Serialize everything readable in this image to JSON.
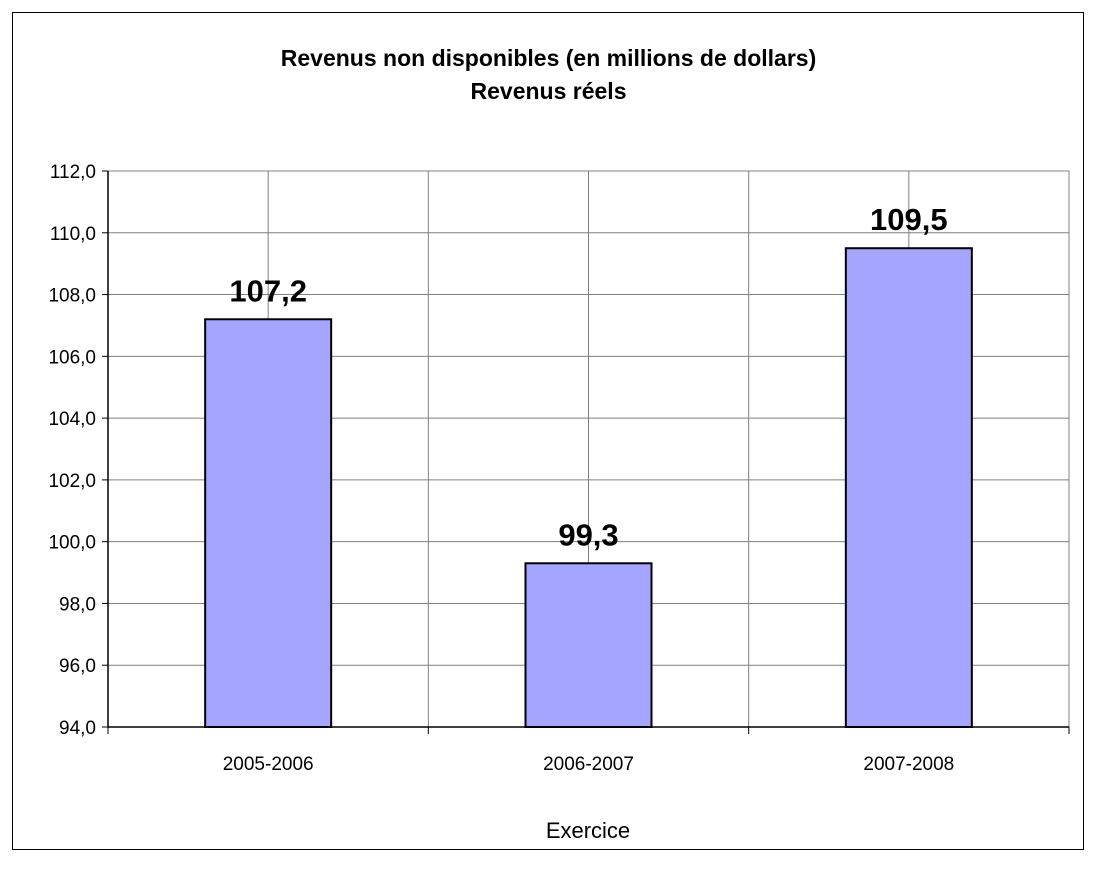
{
  "chart_data": {
    "type": "bar",
    "title": "Revenus non disponibles (en millions de dollars)",
    "subtitle": "Revenus réels",
    "xlabel": "Exercice",
    "ylabel": "",
    "categories": [
      "2005-2006",
      "2006-2007",
      "2007-2008"
    ],
    "values": [
      107.2,
      99.3,
      109.5
    ],
    "data_labels": [
      "107,2",
      "99,3",
      "109,5"
    ],
    "ylim": [
      94,
      112
    ],
    "y_ticks": [
      "94,0",
      "96,0",
      "98,0",
      "100,0",
      "102,0",
      "104,0",
      "106,0",
      "108,0",
      "110,0",
      "112,0"
    ],
    "grid": true,
    "legend": "none",
    "colors": {
      "bar": "#a5a5ff",
      "bar_border": "#000000",
      "grid": "#808080"
    }
  }
}
